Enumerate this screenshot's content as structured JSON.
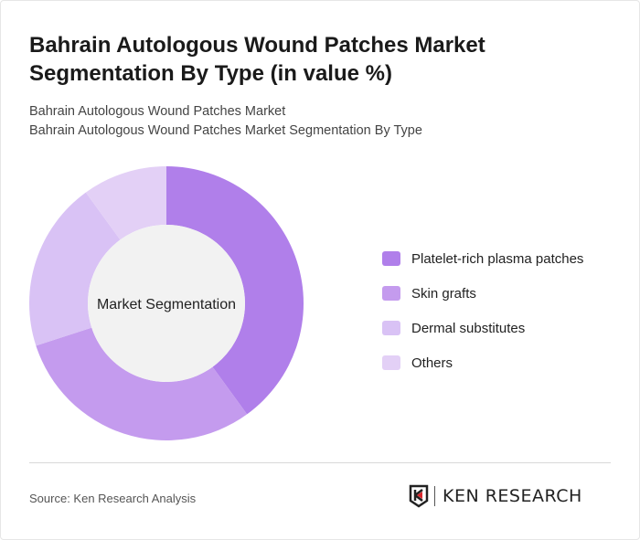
{
  "title": "Bahrain Autologous Wound Patches Market Segmentation By Type (in value %)",
  "subtitle1": "Bahrain Autologous Wound Patches Market",
  "subtitle2": "Bahrain Autologous Wound Patches Market Segmentation By Type",
  "source": "Source: Ken Research Analysis",
  "logo_text": "KEN RESEARCH",
  "chart_data": {
    "type": "pie",
    "donut": true,
    "center_label": "Market Segmentation",
    "legend_position": "right",
    "categories": [
      "Platelet-rich plasma patches",
      "Skin grafts",
      "Dermal substitutes",
      "Others"
    ],
    "values": [
      40,
      30,
      20,
      10
    ],
    "colors": [
      "#b07fea",
      "#c49bee",
      "#d9c2f5",
      "#e3d0f6"
    ],
    "center_color": "#f2f2f2"
  }
}
